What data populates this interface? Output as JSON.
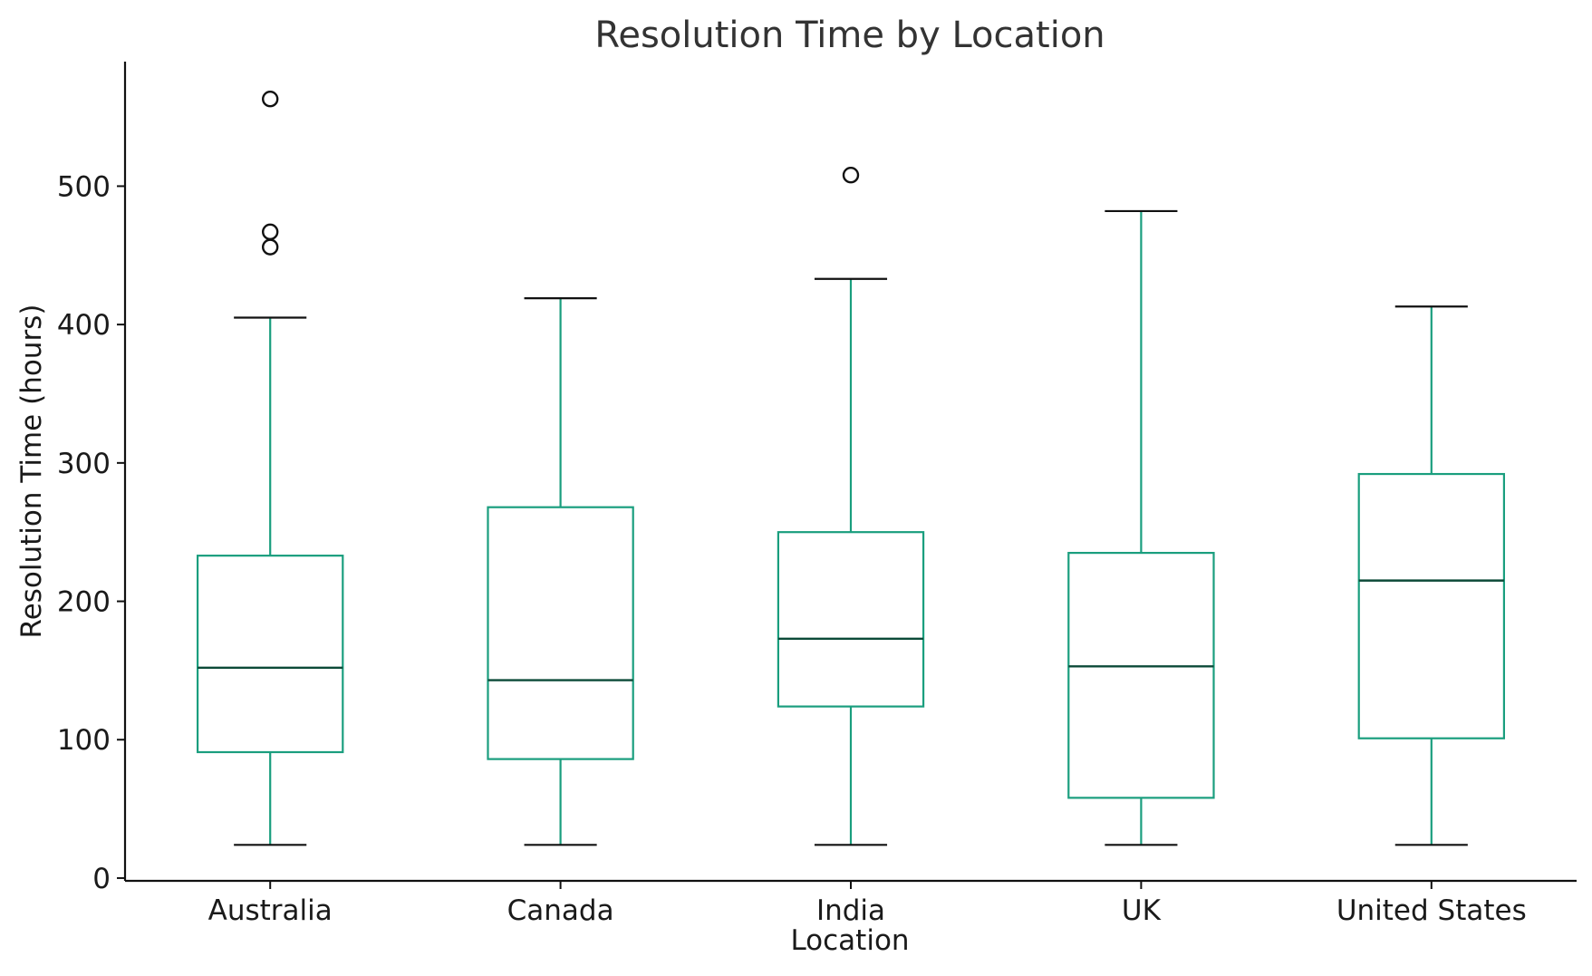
{
  "chart_data": {
    "type": "box",
    "title": "Resolution Time by Location",
    "xlabel": "Location",
    "ylabel": "Resolution Time (hours)",
    "ylim": [
      -2,
      590
    ],
    "yticks": [
      0,
      100,
      200,
      300,
      400,
      500
    ],
    "categories": [
      "Australia",
      "Canada",
      "India",
      "UK",
      "United States"
    ],
    "boxes": [
      {
        "category": "Australia",
        "whisker_low": 24,
        "q1": 91,
        "median": 152,
        "q3": 233,
        "whisker_high": 405,
        "outliers": [
          456,
          467,
          563
        ]
      },
      {
        "category": "Canada",
        "whisker_low": 24,
        "q1": 86,
        "median": 143,
        "q3": 268,
        "whisker_high": 419,
        "outliers": []
      },
      {
        "category": "India",
        "whisker_low": 24,
        "q1": 124,
        "median": 173,
        "q3": 250,
        "whisker_high": 433,
        "outliers": [
          508
        ]
      },
      {
        "category": "UK",
        "whisker_low": 24,
        "q1": 58,
        "median": 153,
        "q3": 235,
        "whisker_high": 482,
        "outliers": []
      },
      {
        "category": "United States",
        "whisker_low": 24,
        "q1": 101,
        "median": 215,
        "q3": 292,
        "whisker_high": 413,
        "outliers": []
      }
    ],
    "colors": {
      "box": "#1a9e7e",
      "median": "#0c4a38",
      "cap": "#111111",
      "outlier": "#111111",
      "axis": "#111111"
    },
    "grid": false,
    "legend": "none"
  }
}
